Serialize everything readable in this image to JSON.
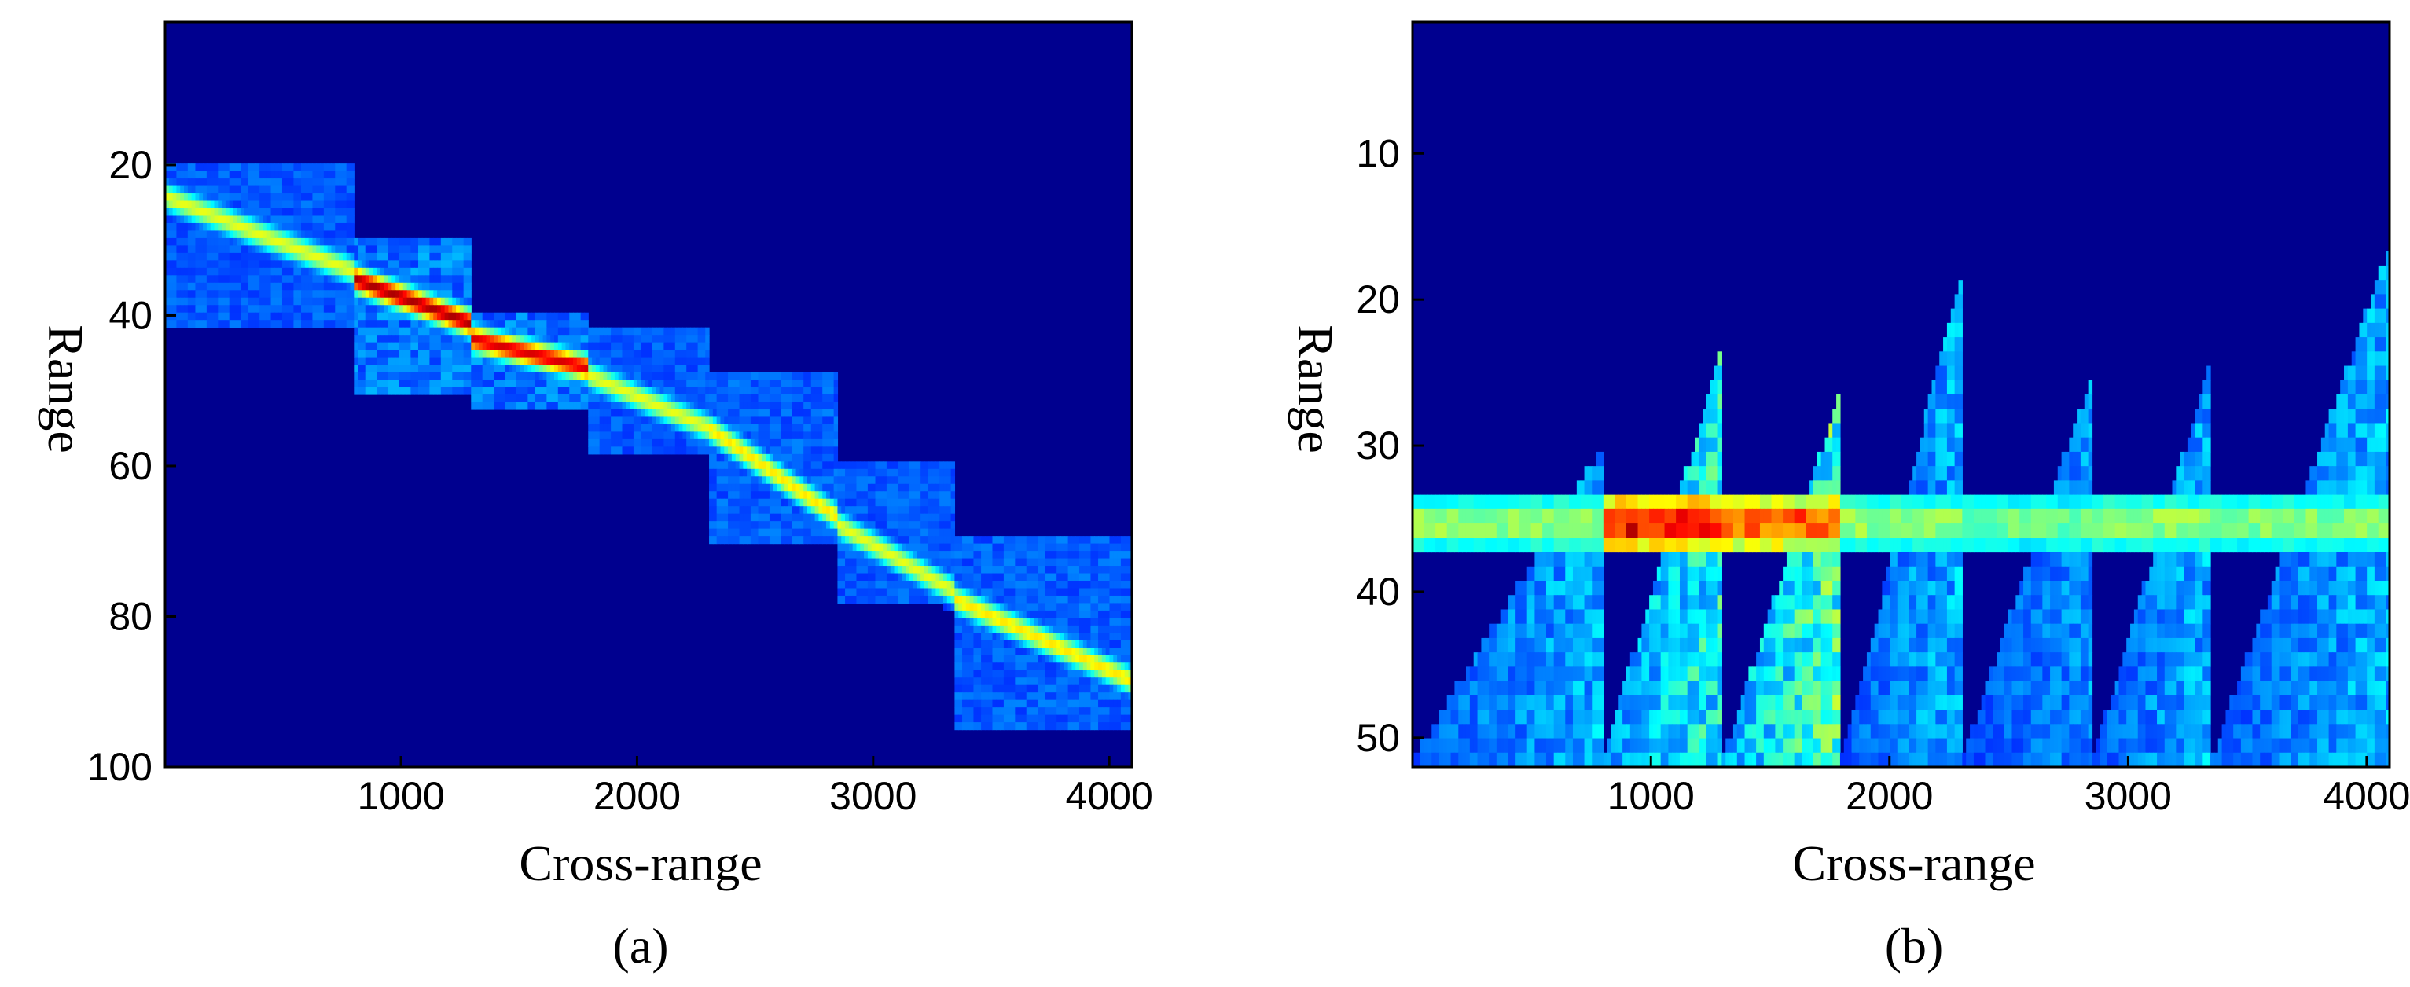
{
  "chart_data": [
    {
      "type": "heatmap",
      "caption": "(a)",
      "xlabel": "Cross-range",
      "ylabel": "Range",
      "xlim": [
        1,
        4096
      ],
      "ylim": [
        100,
        1
      ],
      "y_reversed": true,
      "xticks": [
        1000,
        2000,
        3000,
        4000
      ],
      "yticks": [
        20,
        40,
        60,
        80,
        100
      ],
      "colormap": "jet",
      "background_color": "#00008f",
      "value_range": [
        0,
        1
      ],
      "segments": [
        {
          "x0": 1,
          "x1": 800,
          "y0": 20,
          "y1": 41,
          "ridge": [
            [
              1,
              24
            ],
            [
              800,
              34
            ]
          ],
          "peak": 0.55
        },
        {
          "x0": 800,
          "x1": 1300,
          "y0": 30,
          "y1": 50,
          "ridge": [
            [
              800,
              35
            ],
            [
              1300,
              41
            ]
          ],
          "peak": 0.95
        },
        {
          "x0": 1300,
          "x1": 1800,
          "y0": 40,
          "y1": 52,
          "ridge": [
            [
              1300,
              43
            ],
            [
              1800,
              47
            ]
          ],
          "peak": 0.9
        },
        {
          "x0": 1800,
          "x1": 2300,
          "y0": 42,
          "y1": 58,
          "ridge": [
            [
              1800,
              48
            ],
            [
              2300,
              55
            ]
          ],
          "peak": 0.55
        },
        {
          "x0": 2300,
          "x1": 2850,
          "y0": 48,
          "y1": 70,
          "ridge": [
            [
              2300,
              55
            ],
            [
              2850,
              67
            ]
          ],
          "peak": 0.6
        },
        {
          "x0": 2850,
          "x1": 3350,
          "y0": 60,
          "y1": 78,
          "ridge": [
            [
              2850,
              68
            ],
            [
              3350,
              77
            ]
          ],
          "peak": 0.55
        },
        {
          "x0": 3350,
          "x1": 4096,
          "y0": 70,
          "y1": 95,
          "ridge": [
            [
              3350,
              78
            ],
            [
              4096,
              89
            ]
          ],
          "peak": 0.6
        }
      ]
    },
    {
      "type": "heatmap",
      "caption": "(b)",
      "xlabel": "Cross-range",
      "ylabel": "Range",
      "xlim": [
        1,
        4096
      ],
      "ylim": [
        52,
        1
      ],
      "y_reversed": true,
      "xticks": [
        1000,
        2000,
        3000,
        4000
      ],
      "yticks": [
        10,
        20,
        30,
        40,
        50
      ],
      "colormap": "jet",
      "background_color": "#00008f",
      "value_range": [
        0,
        1
      ],
      "band": {
        "rows": [
          34,
          35,
          36,
          37
        ],
        "center_row": 36
      },
      "segments": [
        {
          "x0": 1,
          "x1": 800,
          "band_peak": 0.5,
          "streak_top": 30,
          "streak_peak": 0.3
        },
        {
          "x0": 800,
          "x1": 1300,
          "band_peak": 0.95,
          "streak_top": 23,
          "streak_peak": 0.45
        },
        {
          "x0": 1300,
          "x1": 1800,
          "band_peak": 0.85,
          "streak_top": 26,
          "streak_peak": 0.55
        },
        {
          "x0": 1800,
          "x1": 2300,
          "band_peak": 0.5,
          "streak_top": 18,
          "streak_peak": 0.3
        },
        {
          "x0": 2300,
          "x1": 2850,
          "band_peak": 0.45,
          "streak_top": 25,
          "streak_peak": 0.25
        },
        {
          "x0": 2850,
          "x1": 3350,
          "band_peak": 0.5,
          "streak_top": 24,
          "streak_peak": 0.3
        },
        {
          "x0": 3350,
          "x1": 4096,
          "band_peak": 0.48,
          "streak_top": 16,
          "streak_peak": 0.3
        }
      ]
    }
  ]
}
